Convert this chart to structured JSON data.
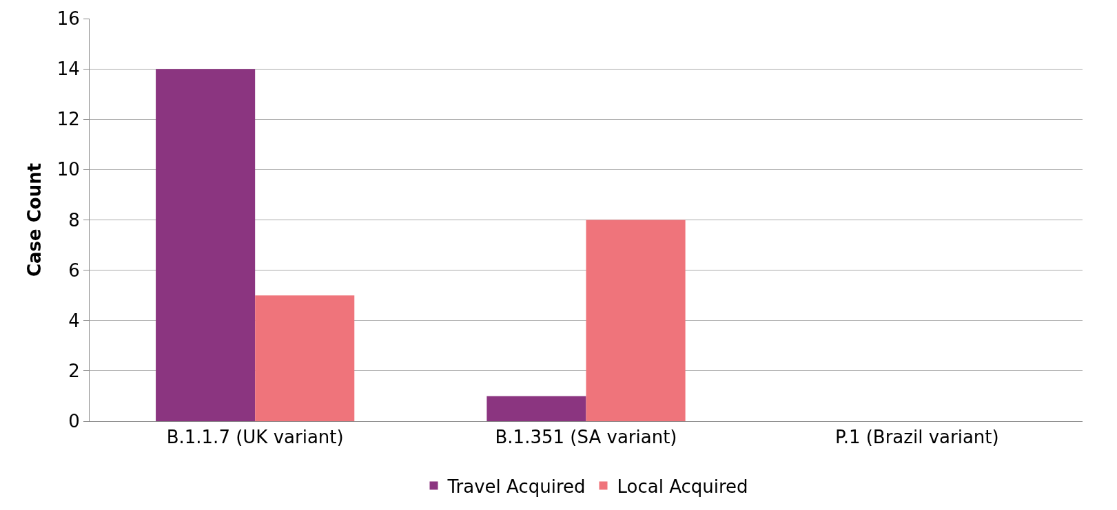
{
  "chart_data": {
    "type": "bar",
    "ylabel": "Case Count",
    "categories": [
      "B.1.1.7 (UK variant)",
      "B.1.351 (SA variant)",
      "P.1 (Brazil variant)"
    ],
    "series": [
      {
        "name": "Travel Acquired",
        "color": "#8b3580",
        "values": [
          14,
          1,
          0
        ]
      },
      {
        "name": "Local Acquired",
        "color": "#ef747b",
        "values": [
          5,
          8,
          0
        ]
      }
    ],
    "ylim": [
      0,
      16
    ],
    "yticks": [
      0,
      2,
      4,
      6,
      8,
      10,
      12,
      14,
      16
    ],
    "grid": "y",
    "legend": "bottom"
  }
}
